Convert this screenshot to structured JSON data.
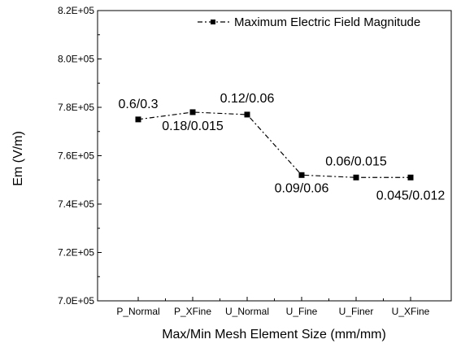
{
  "chart_data": {
    "type": "line",
    "categories": [
      "P_Normal",
      "P_XFine",
      "U_Normal",
      "U_Fine",
      "U_Finer",
      "U_XFine"
    ],
    "series": [
      {
        "name": "Maximum Electric Field Magnitude",
        "values": [
          775000,
          778000,
          777000,
          752000,
          751000,
          751000
        ],
        "point_labels": [
          "0.6/0.3",
          "0.18/0.015",
          "0.12/0.06",
          "0.09/0.06",
          "0.06/0.015",
          "0.045/0.012"
        ],
        "color": "#000000",
        "line_style": "dash-dot",
        "marker": "square"
      }
    ],
    "xlabel": "Max/Min Mesh Element Size (mm/mm)",
    "ylabel": "Em (V/m)",
    "ylim": [
      700000,
      820000
    ],
    "yticks": [
      700000,
      720000,
      740000,
      760000,
      780000,
      800000,
      820000
    ],
    "ytick_labels": [
      "7.0E+05",
      "7.2E+05",
      "7.4E+05",
      "7.6E+05",
      "7.8E+05",
      "8.0E+05",
      "8.2E+05"
    ],
    "grid": false,
    "legend_position": "top-right"
  }
}
